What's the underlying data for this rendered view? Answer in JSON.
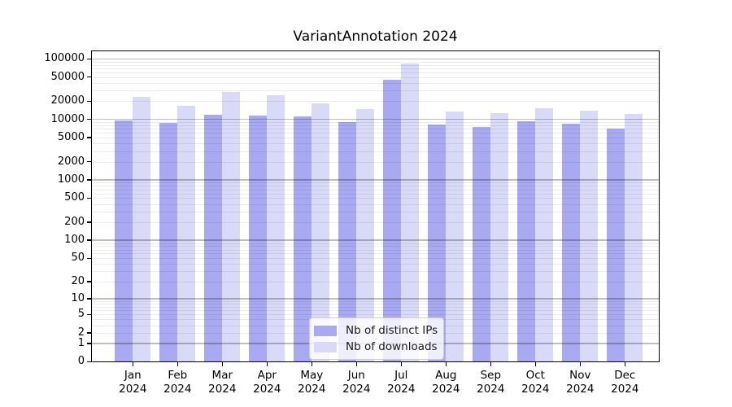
{
  "title": "VariantAnnotation 2024",
  "chart_data": {
    "type": "bar",
    "title": "VariantAnnotation 2024",
    "categories": [
      "Jan",
      "Feb",
      "Mar",
      "Apr",
      "May",
      "Jun",
      "Jul",
      "Aug",
      "Sep",
      "Oct",
      "Nov",
      "Dec"
    ],
    "x_label_second_line": "2024",
    "series": [
      {
        "name": "Nb of distinct IPs",
        "color": "#a9a9f2",
        "values": [
          9600,
          8800,
          12000,
          11700,
          11300,
          9000,
          45000,
          8200,
          7600,
          9300,
          8600,
          7000
        ]
      },
      {
        "name": "Nb of downloads",
        "color": "#d9d9f8",
        "values": [
          23500,
          17000,
          28500,
          25000,
          18500,
          15000,
          85000,
          13600,
          12700,
          15300,
          13900,
          12300
        ]
      }
    ],
    "y_ticks": [
      0,
      1,
      2,
      5,
      10,
      20,
      50,
      100,
      200,
      500,
      1000,
      2000,
      5000,
      10000,
      20000,
      50000,
      100000
    ],
    "y_scale": "log10(1+v)",
    "ylim": [
      0,
      140000
    ],
    "grid": "horizontal major and minor gridlines, drawn over bars",
    "legend_position": "inside bottom-center",
    "colors": {
      "grid_major": "rgba(0,0,0,0.26)",
      "grid_minor": "rgba(0,0,0,0.08)",
      "axis": "#000000",
      "background": "#ffffff"
    }
  }
}
